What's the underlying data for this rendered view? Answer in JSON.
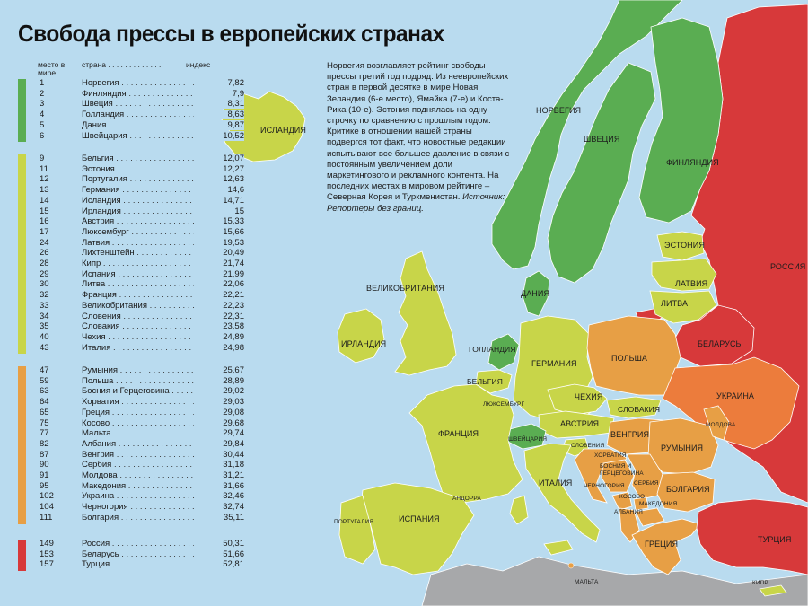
{
  "title": "Свобода прессы в европейских странах",
  "legend_header": {
    "rank": "место в мире",
    "country": "страна . . . . . . . . . . . . .",
    "index": "индекс"
  },
  "colors": {
    "sea": "#b9dbef",
    "green": "#5aad52",
    "yellow_green": "#c8d549",
    "orange": "#e79f45",
    "orange_red": "#ec7c3c",
    "red": "#d7393a",
    "gray": "#a7a8aa"
  },
  "groups": [
    {
      "color": "#5aad52",
      "rows": [
        {
          "rank": "1",
          "country": "Норвегия",
          "index": "7,82"
        },
        {
          "rank": "2",
          "country": "Финляндия",
          "index": "7,9"
        },
        {
          "rank": "3",
          "country": "Швеция",
          "index": "8,31"
        },
        {
          "rank": "4",
          "country": "Голландия",
          "index": "8,63"
        },
        {
          "rank": "5",
          "country": "Дания",
          "index": "9,87"
        },
        {
          "rank": "6",
          "country": "Швейцария",
          "index": "10,52"
        }
      ]
    },
    {
      "color": "#c8d549",
      "rows": [
        {
          "rank": "9",
          "country": "Бельгия",
          "index": "12,07"
        },
        {
          "rank": "11",
          "country": "Эстония",
          "index": "12,27"
        },
        {
          "rank": "12",
          "country": "Португалия",
          "index": "12,63"
        },
        {
          "rank": "13",
          "country": "Германия",
          "index": "14,6"
        },
        {
          "rank": "14",
          "country": "Исландия",
          "index": "14,71"
        },
        {
          "rank": "15",
          "country": "Ирландия",
          "index": "15"
        },
        {
          "rank": "16",
          "country": "Австрия",
          "index": "15,33"
        },
        {
          "rank": "17",
          "country": "Люксембург",
          "index": "15,66"
        },
        {
          "rank": "24",
          "country": "Латвия",
          "index": "19,53"
        },
        {
          "rank": "26",
          "country": "Лихтенштейн",
          "index": "20,49"
        },
        {
          "rank": "28",
          "country": "Кипр",
          "index": "21,74"
        },
        {
          "rank": "29",
          "country": "Испания",
          "index": "21,99"
        },
        {
          "rank": "30",
          "country": "Литва",
          "index": "22,06"
        },
        {
          "rank": "32",
          "country": "Франция",
          "index": "22,21"
        },
        {
          "rank": "33",
          "country": "Великобритания",
          "index": "22,23"
        },
        {
          "rank": "34",
          "country": "Словения",
          "index": "22,31"
        },
        {
          "rank": "35",
          "country": "Словакия",
          "index": "23,58"
        },
        {
          "rank": "40",
          "country": "Чехия",
          "index": "24,89"
        },
        {
          "rank": "43",
          "country": "Италия",
          "index": "24,98"
        }
      ]
    },
    {
      "color": "#e79f45",
      "rows": [
        {
          "rank": "47",
          "country": "Румыния",
          "index": "25,67"
        },
        {
          "rank": "59",
          "country": "Польша",
          "index": "28,89"
        },
        {
          "rank": "63",
          "country": "Босния и Герцеговина",
          "index": "29,02"
        },
        {
          "rank": "64",
          "country": "Хорватия",
          "index": "29,03"
        },
        {
          "rank": "65",
          "country": "Греция",
          "index": "29,08"
        },
        {
          "rank": "75",
          "country": "Косово",
          "index": "29,68"
        },
        {
          "rank": "77",
          "country": "Мальта",
          "index": "29,74"
        },
        {
          "rank": "82",
          "country": "Албания",
          "index": "29,84"
        },
        {
          "rank": "87",
          "country": "Венгрия",
          "index": "30,44"
        },
        {
          "rank": "90",
          "country": "Сербия",
          "index": "31,18"
        },
        {
          "rank": "91",
          "country": "Молдова",
          "index": "31,21"
        },
        {
          "rank": "95",
          "country": "Македония",
          "index": "31,66"
        },
        {
          "rank": "102",
          "country": "Украина",
          "index": "32,46"
        },
        {
          "rank": "104",
          "country": "Черногория",
          "index": "32,74"
        },
        {
          "rank": "111",
          "country": "Болгария",
          "index": "35,11"
        }
      ]
    },
    {
      "color": "#d7393a",
      "rows": [
        {
          "rank": "149",
          "country": "Россия",
          "index": "50,31"
        },
        {
          "rank": "153",
          "country": "Беларусь",
          "index": "51,66"
        },
        {
          "rank": "157",
          "country": "Турция",
          "index": "52,81"
        }
      ]
    }
  ],
  "note": {
    "text": "Норвегия возглавляет рейтинг свободы прессы третий год подряд. Из неевропейских стран в первой десятке в мире Новая Зеландия (6-е место), Ямайка (7-е) и Коста-Рика (10-е). Эстония поднялась на одну строчку по сравнению с прошлым годом. Критике в отношении нашей страны подвергся тот факт, что новостные редакции испытывают все большее давление в связи с постоянным увеличением доли маркетингового и рекламного контента. На последних местах в мировом рейтинге – Северная Корея и Туркменистан.",
    "source": "Источник: Репортеры без границ."
  },
  "map_labels": {
    "iceland": "ИСЛАНДИЯ",
    "norway": "НОРВЕГИЯ",
    "sweden": "ШВЕЦИЯ",
    "finland": "ФИНЛЯНДИЯ",
    "estonia": "ЭСТОНИЯ",
    "latvia": "ЛАТВИЯ",
    "lithuania": "ЛИТВА",
    "russia": "РОССИЯ",
    "belarus": "БЕЛАРУСЬ",
    "uk": "ВЕЛИКОБРИТАНИЯ",
    "ireland": "ИРЛАНДИЯ",
    "denmark": "ДАНИЯ",
    "netherlands": "ГОЛЛАНДИЯ",
    "belgium": "БЕЛЬГИЯ",
    "luxembourg": "ЛЮКСЕМБУРГ",
    "germany": "ГЕРМАНИЯ",
    "poland": "ПОЛЬША",
    "ukraine": "УКРАИНА",
    "czech": "ЧЕХИЯ",
    "slovakia": "СЛОВАКИЯ",
    "austria": "АВСТРИЯ",
    "switzerland": "ШВЕЙЦАРИЯ",
    "france": "ФРАНЦИЯ",
    "hungary": "ВЕНГРИЯ",
    "moldova": "МОЛДОВА",
    "romania": "РУМЫНИЯ",
    "slovenia": "СЛОВЕНИЯ",
    "croatia": "ХОРВАТИЯ",
    "bosnia": "БОСНИЯ И ГЕРЦЕГОВИНА",
    "serbia": "СЕРБИЯ",
    "montenegro": "ЧЕРНОГОРИЯ",
    "kosovo": "КОСОВО",
    "macedonia": "МАКЕДОНИЯ",
    "albania": "АЛБАНИЯ",
    "bulgaria": "БОЛГАРИЯ",
    "italy": "ИТАЛИЯ",
    "andorra": "АНДОРРА",
    "portugal": "ПОРТУГАЛИЯ",
    "spain": "ИСПАНИЯ",
    "greece": "ГРЕЦИЯ",
    "turkey": "ТУРЦИЯ",
    "malta": "МАЛЬТА",
    "cyprus": "КИПР"
  }
}
